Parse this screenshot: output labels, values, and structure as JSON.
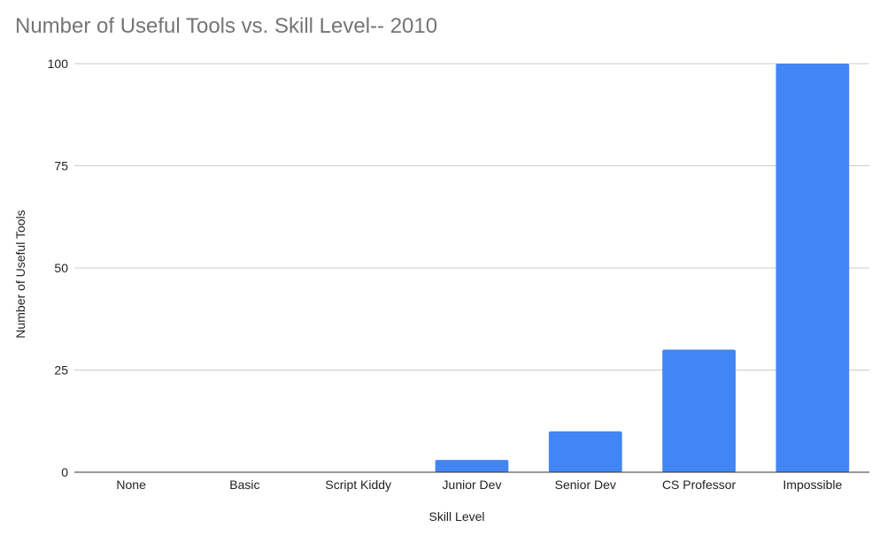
{
  "chart_data": {
    "type": "bar",
    "title": "Number of Useful Tools vs. Skill Level-- 2010",
    "xlabel": "Skill Level",
    "ylabel": "Number of Useful Tools",
    "categories": [
      "None",
      "Basic",
      "Script Kiddy",
      "Junior Dev",
      "Senior Dev",
      "CS Professor",
      "Impossible"
    ],
    "series": [
      {
        "values": [
          0,
          0,
          0,
          3,
          10,
          30,
          100
        ]
      }
    ],
    "ylim": [
      0,
      100
    ],
    "yticks": [
      0,
      25,
      50,
      75,
      100
    ],
    "grid": true,
    "legend": "none",
    "bar_color": "#4285f4",
    "grid_color": "#cccccc",
    "axis_color": "#333333"
  }
}
